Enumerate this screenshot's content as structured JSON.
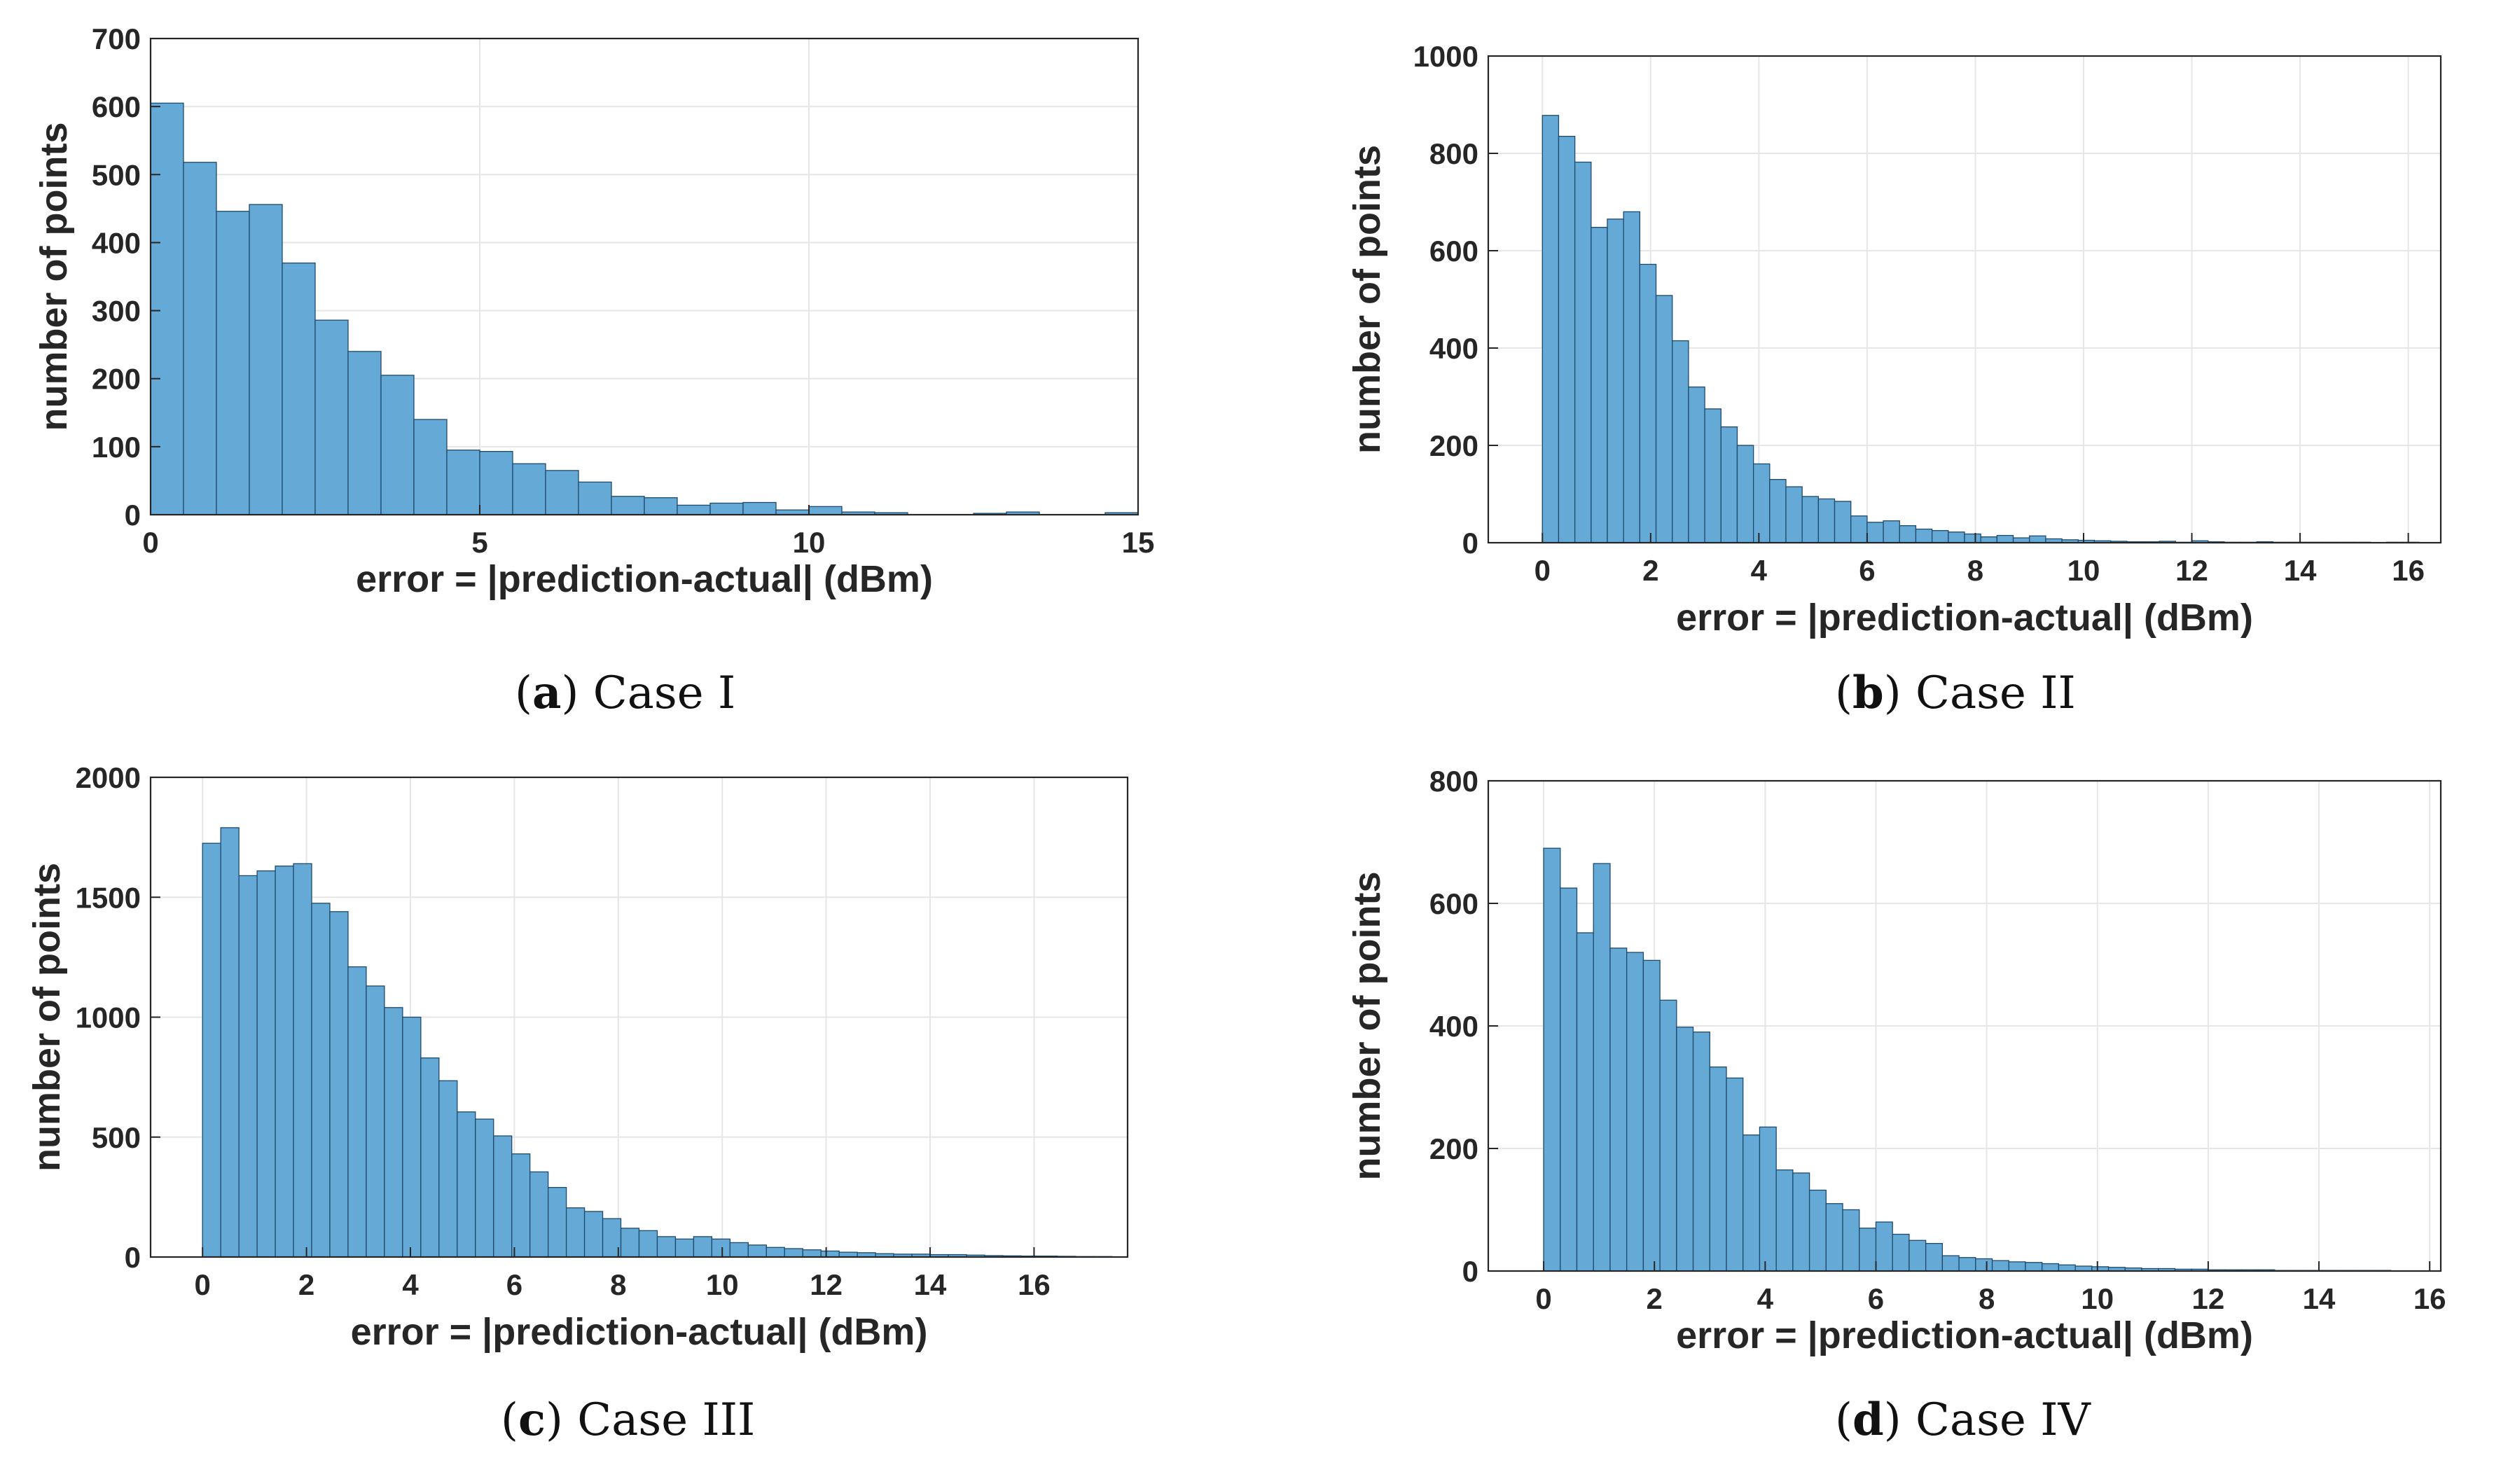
{
  "figure": {
    "captions": [
      {
        "letter": "a",
        "text": "Case I"
      },
      {
        "letter": "b",
        "text": "Case II"
      },
      {
        "letter": "c",
        "text": "Case III"
      },
      {
        "letter": "d",
        "text": "Case IV"
      }
    ]
  },
  "colors": {
    "bar_fill": "#65a9d7",
    "bar_edge": "#1f4a6b",
    "axis": "#262626",
    "grid": "#e6e6e6"
  },
  "chart_data": [
    {
      "type": "bar",
      "title": "Case I",
      "xlabel": "error = |prediction-actual| (dBm)",
      "ylabel": "number of points",
      "xlim": [
        0,
        15
      ],
      "ylim": [
        0,
        700
      ],
      "xticks": [
        0,
        5,
        10,
        15
      ],
      "yticks": [
        0,
        100,
        200,
        300,
        400,
        500,
        600,
        700
      ],
      "grid": true,
      "bin_width": 0.5,
      "bin_start": 0,
      "values": [
        605,
        518,
        446,
        456,
        370,
        286,
        240,
        205,
        140,
        95,
        93,
        75,
        65,
        48,
        27,
        25,
        14,
        17,
        18,
        7,
        12,
        4,
        3,
        0,
        0,
        2,
        4,
        0,
        0,
        3
      ]
    },
    {
      "type": "bar",
      "title": "Case II",
      "xlabel": "error = |prediction-actual| (dBm)",
      "ylabel": "number of points",
      "xlim": [
        -1,
        16.6
      ],
      "ylim": [
        0,
        1000
      ],
      "xticks": [
        0,
        2,
        4,
        6,
        8,
        10,
        12,
        14,
        16
      ],
      "yticks": [
        0,
        200,
        400,
        600,
        800,
        1000
      ],
      "grid": true,
      "bin_width": 0.3,
      "bin_start": 0,
      "values": [
        878,
        835,
        782,
        648,
        665,
        680,
        572,
        508,
        415,
        320,
        275,
        238,
        200,
        162,
        130,
        115,
        95,
        90,
        85,
        55,
        42,
        45,
        35,
        28,
        25,
        22,
        18,
        12,
        15,
        10,
        14,
        8,
        6,
        5,
        4,
        3,
        2,
        2,
        3,
        1,
        4,
        2,
        1,
        1,
        2,
        1,
        1,
        1,
        1,
        1,
        1,
        0,
        1,
        1
      ]
    },
    {
      "type": "bar",
      "title": "Case III",
      "xlabel": "error = |prediction-actual| (dBm)",
      "ylabel": "number of points",
      "xlim": [
        -1,
        17.8
      ],
      "ylim": [
        0,
        2000
      ],
      "xticks": [
        0,
        2,
        4,
        6,
        8,
        10,
        12,
        14,
        16
      ],
      "yticks": [
        0,
        500,
        1000,
        1500,
        2000
      ],
      "grid": true,
      "bin_width": 0.35,
      "bin_start": 0,
      "values": [
        1725,
        1790,
        1590,
        1610,
        1630,
        1640,
        1475,
        1440,
        1210,
        1130,
        1040,
        1000,
        830,
        735,
        605,
        575,
        505,
        430,
        355,
        290,
        205,
        190,
        160,
        120,
        110,
        85,
        75,
        85,
        75,
        60,
        50,
        40,
        35,
        30,
        25,
        20,
        18,
        14,
        12,
        12,
        10,
        10,
        8,
        6,
        5,
        4,
        4,
        3,
        2,
        2
      ]
    },
    {
      "type": "bar",
      "title": "Case IV",
      "xlabel": "error = |prediction-actual| (dBm)",
      "ylabel": "number of points",
      "xlim": [
        -1,
        16.2
      ],
      "ylim": [
        0,
        800
      ],
      "xticks": [
        0,
        2,
        4,
        6,
        8,
        10,
        12,
        14,
        16
      ],
      "yticks": [
        0,
        200,
        400,
        600,
        800
      ],
      "grid": true,
      "bin_width": 0.3,
      "bin_start": 0,
      "values": [
        690,
        625,
        552,
        665,
        527,
        520,
        507,
        442,
        398,
        390,
        333,
        315,
        222,
        235,
        165,
        160,
        132,
        110,
        100,
        70,
        80,
        60,
        50,
        45,
        25,
        22,
        20,
        17,
        15,
        14,
        12,
        10,
        8,
        7,
        6,
        5,
        4,
        4,
        3,
        3,
        2,
        2,
        2,
        2,
        1,
        1,
        1,
        1,
        1,
        1,
        1
      ]
    }
  ]
}
